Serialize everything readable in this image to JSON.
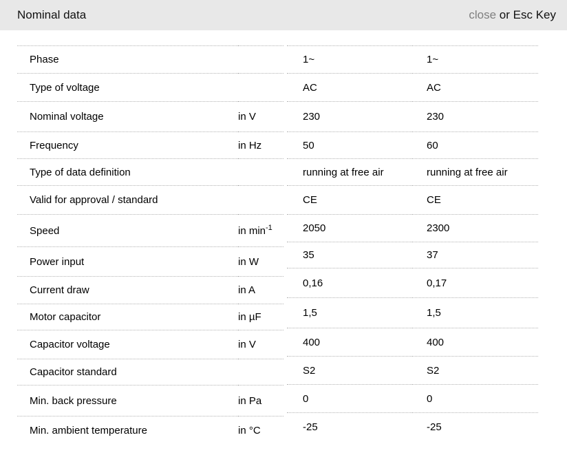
{
  "header": {
    "title": "Nominal data",
    "close_label": "close",
    "close_suffix": " or Esc Key"
  },
  "table": {
    "rows": [
      {
        "label": "Phase",
        "unit": "",
        "values": [
          "1~",
          "1~"
        ]
      },
      {
        "label": "Type of voltage",
        "unit": "",
        "values": [
          "AC",
          "AC"
        ]
      },
      {
        "label": "Nominal voltage",
        "unit": "in V",
        "values": [
          "230",
          "230"
        ]
      },
      {
        "label": "Frequency",
        "unit": "in Hz",
        "values": [
          "50",
          "60"
        ]
      },
      {
        "label": "Type of data definition",
        "unit": "",
        "values": [
          "running at free air",
          "running at free air"
        ]
      },
      {
        "label": "Valid for approval / standard",
        "unit": "",
        "values": [
          "CE",
          "CE"
        ]
      },
      {
        "label": "Speed",
        "unit": "in min",
        "unit_sup": "-1",
        "values": [
          "2050",
          "2300"
        ]
      },
      {
        "label": "Power input",
        "unit": "in W",
        "values": [
          "35",
          "37"
        ]
      },
      {
        "label": "Current draw",
        "unit": "in A",
        "values": [
          "0,16",
          "0,17"
        ]
      },
      {
        "label": "Motor capacitor",
        "unit": "in µF",
        "values": [
          "1,5",
          "1,5"
        ]
      },
      {
        "label": "Capacitor voltage",
        "unit": "in V",
        "values": [
          "400",
          "400"
        ]
      },
      {
        "label": "Capacitor standard",
        "unit": "",
        "values": [
          "S2",
          "S2"
        ]
      },
      {
        "label": "Min. back pressure",
        "unit": "in Pa",
        "values": [
          "0",
          "0"
        ]
      },
      {
        "label": "Min. ambient temperature",
        "unit": "in °C",
        "values": [
          "-25",
          "-25"
        ]
      }
    ]
  },
  "colors": {
    "header_background": "#e8e8e8",
    "close_link": "#7f7f7f",
    "text": "#000000",
    "divider": "#b2b2b2"
  }
}
